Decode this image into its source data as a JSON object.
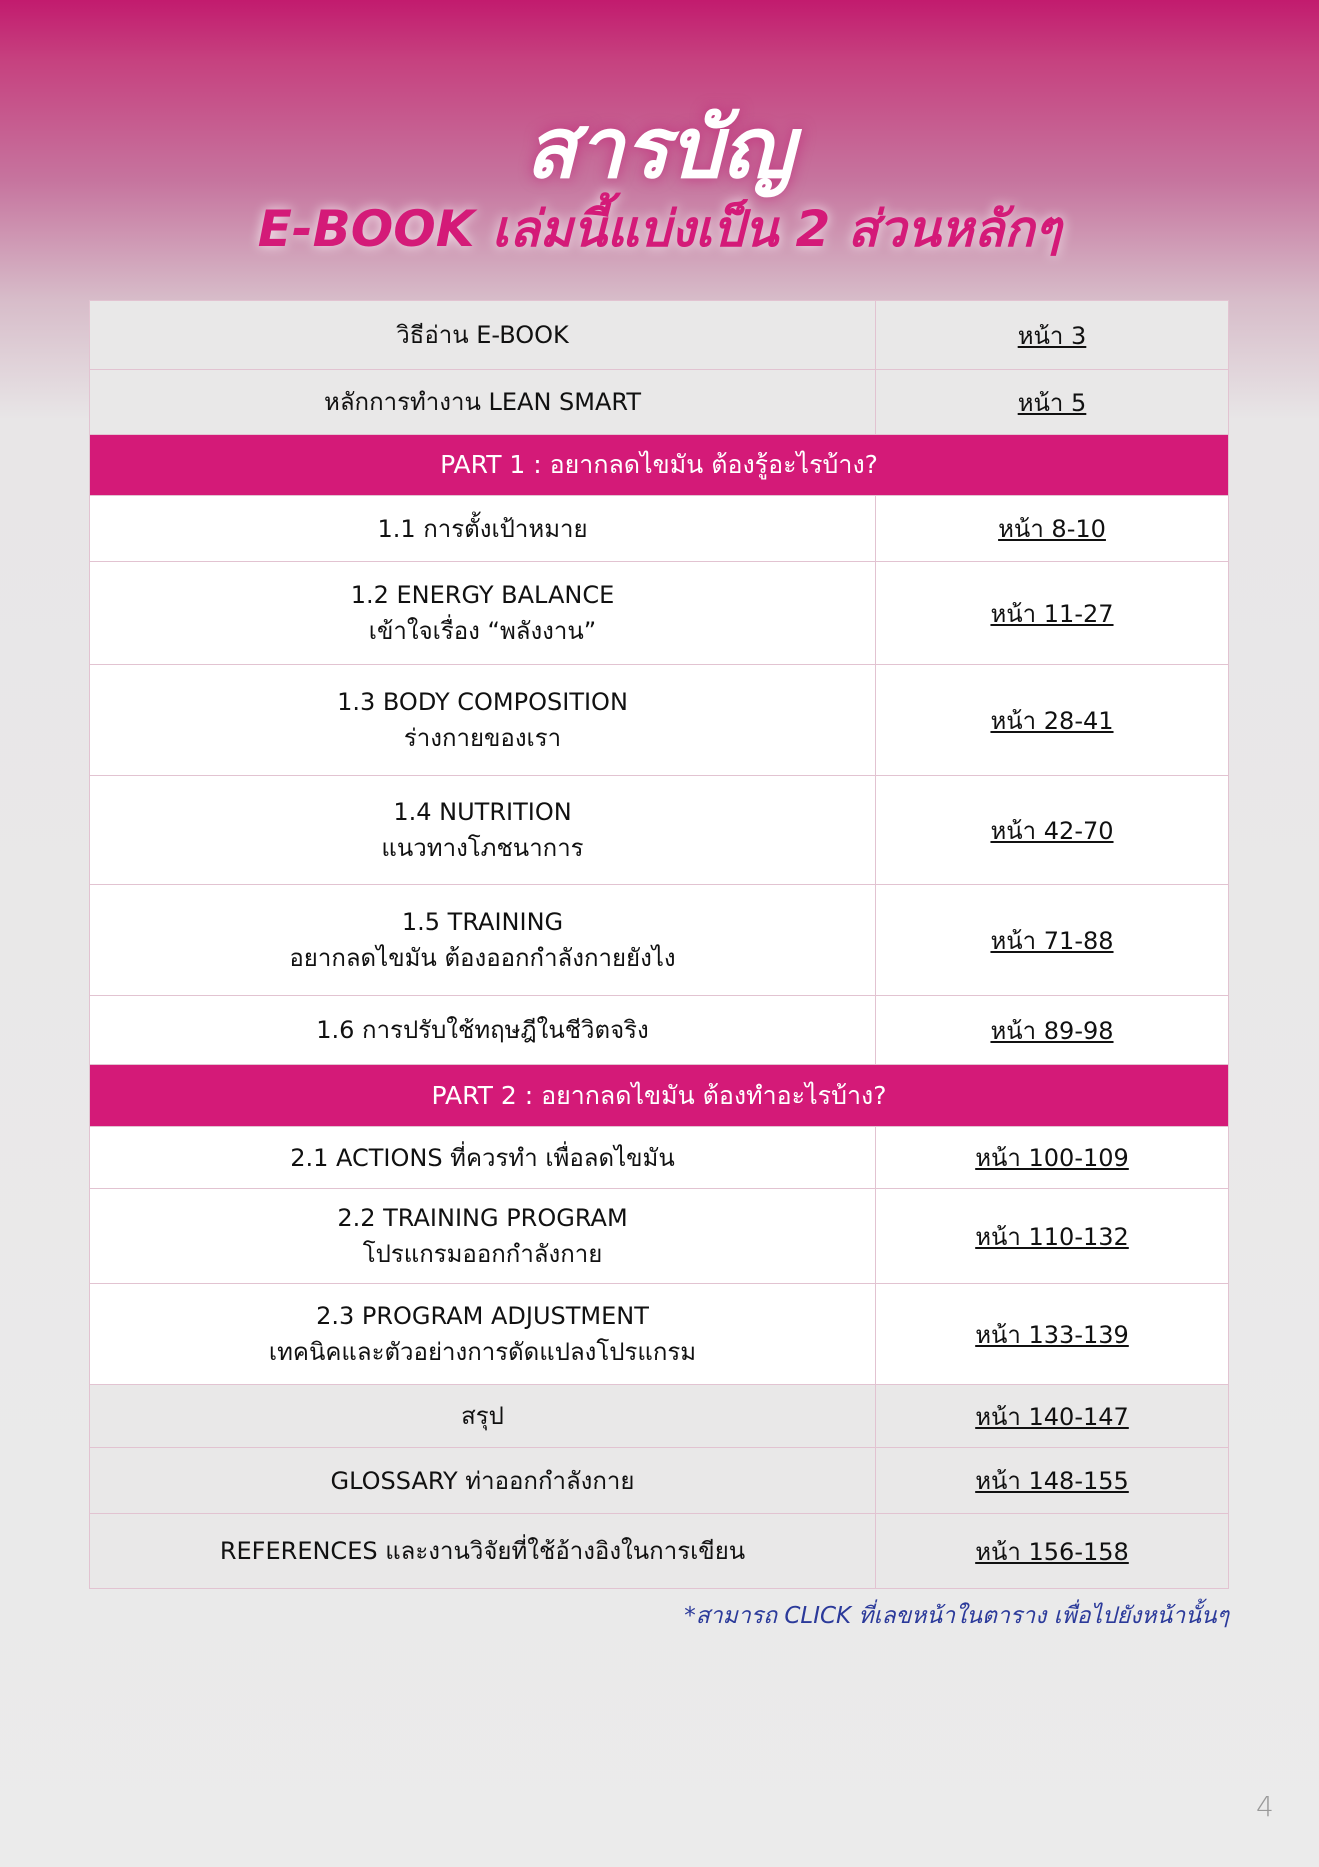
{
  "title": "สารบัญ",
  "subtitle": "E-BOOK เล่มนี้แบ่งเป็น 2 ส่วนหลักๆ",
  "rows": [
    {
      "type": "item",
      "style": "gray",
      "title": "วิธีอ่าน E-BOOK",
      "page": "หน้า 3"
    },
    {
      "type": "item",
      "style": "gray",
      "title": "หลักการทำงาน LEAN SMART",
      "page": "หน้า 5"
    },
    {
      "type": "part",
      "title": "PART 1 : อยากลดไขมัน ต้องรู้อะไรบ้าง?"
    },
    {
      "type": "item",
      "style": "white",
      "title": "1.1 การตั้งเป้าหมาย",
      "page": "หน้า 8-10"
    },
    {
      "type": "item",
      "style": "white",
      "title": "1.2 ENERGY BALANCE",
      "subtitle": "เข้าใจเรื่อง “พลังงาน”",
      "page": "หน้า 11-27"
    },
    {
      "type": "item",
      "style": "white",
      "title": "1.3 BODY COMPOSITION",
      "subtitle": "ร่างกายของเรา",
      "page": "หน้า 28-41"
    },
    {
      "type": "item",
      "style": "white",
      "title": "1.4 NUTRITION",
      "subtitle": "แนวทางโภชนาการ",
      "page": "หน้า 42-70"
    },
    {
      "type": "item",
      "style": "white",
      "title": "1.5 TRAINING",
      "subtitle": "อยากลดไขมัน ต้องออกกำลังกายยังไง",
      "page": "หน้า 71-88"
    },
    {
      "type": "item",
      "style": "white",
      "title": "1.6 การปรับใช้ทฤษฎีในชีวิตจริง",
      "page": "หน้า 89-98"
    },
    {
      "type": "part",
      "title": "PART 2 : อยากลดไขมัน ต้องทำอะไรบ้าง?"
    },
    {
      "type": "item",
      "style": "white",
      "title": "2.1 ACTIONS ที่ควรทำ เพื่อลดไขมัน",
      "page": "หน้า 100-109"
    },
    {
      "type": "item",
      "style": "white",
      "title": "2.2 TRAINING PROGRAM",
      "subtitle": "โปรแกรมออกกำลังกาย",
      "page": "หน้า 110-132"
    },
    {
      "type": "item",
      "style": "white",
      "title": "2.3 PROGRAM ADJUSTMENT",
      "subtitle": "เทคนิคและตัวอย่างการดัดแปลงโปรแกรม",
      "page": "หน้า 133-139"
    },
    {
      "type": "item",
      "style": "gray",
      "title": "สรุป",
      "page": "หน้า 140-147"
    },
    {
      "type": "item",
      "style": "gray",
      "title": "GLOSSARY ท่าออกกำลังกาย",
      "page": "หน้า 148-155"
    },
    {
      "type": "item",
      "style": "gray",
      "title": "REFERENCES และงานวิจัยที่ใช้อ้างอิงในการเขียน",
      "page": "หน้า 156-158"
    }
  ],
  "note": "*สามารถ CLICK ที่เลขหน้าในตาราง เพื่อไปยังหน้านั้นๆ",
  "page_number": "4",
  "colors": {
    "accent": "#d41a78",
    "note": "#2b3a9a"
  }
}
